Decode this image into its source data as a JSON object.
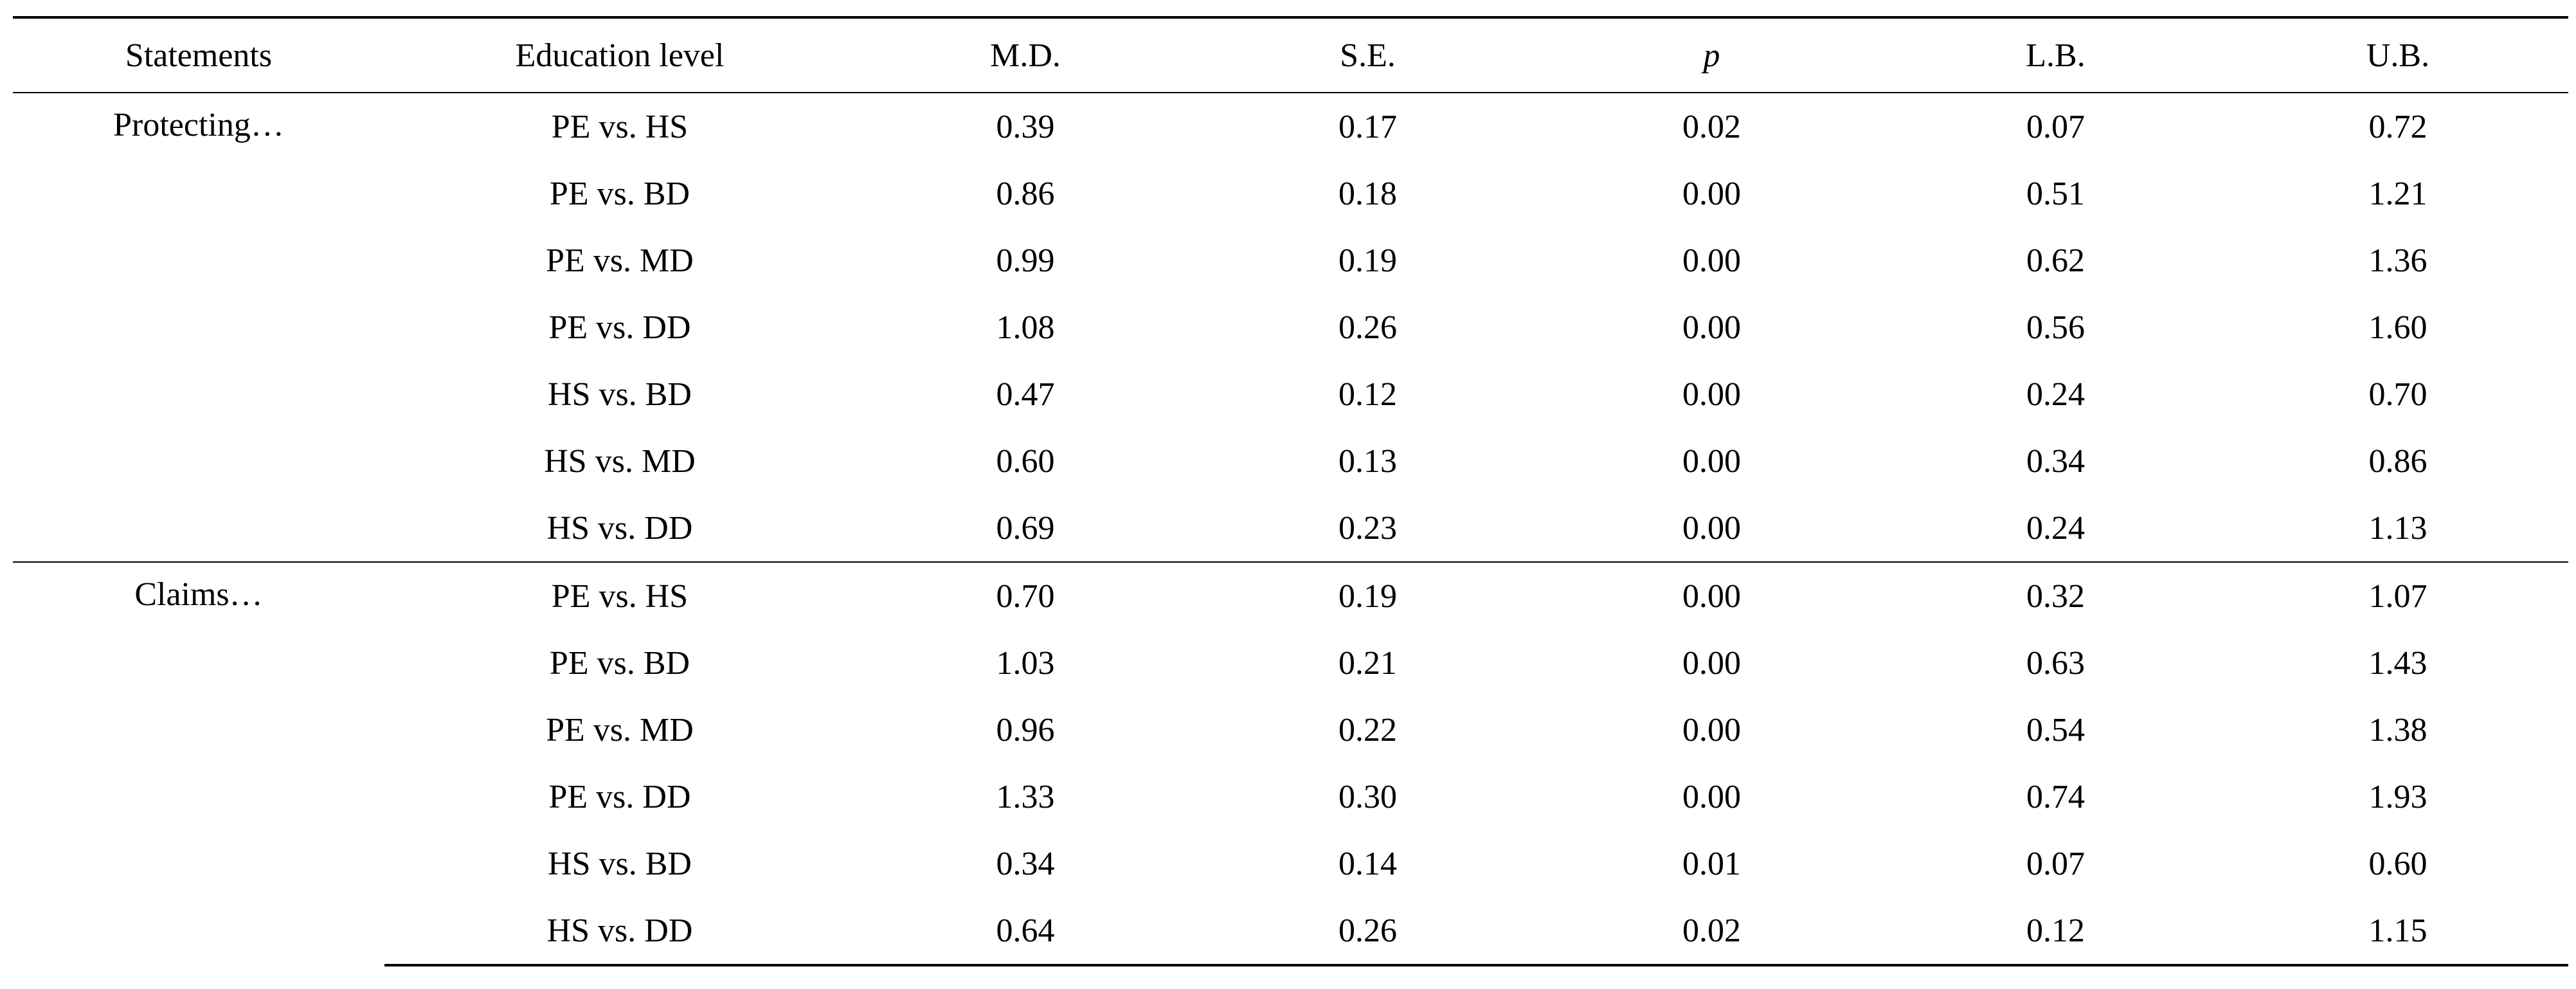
{
  "table": {
    "headers": {
      "statements": "Statements",
      "education_level": "Education level",
      "md": "M.D.",
      "se": "S.E.",
      "p": "p",
      "lb": "L.B.",
      "ub": "U.B."
    },
    "groups": [
      {
        "statement": "Protecting…",
        "rows": [
          {
            "education_level": "PE vs. HS",
            "md": "0.39",
            "se": "0.17",
            "p": "0.02",
            "lb": "0.07",
            "ub": "0.72"
          },
          {
            "education_level": "PE vs. BD",
            "md": "0.86",
            "se": "0.18",
            "p": "0.00",
            "lb": "0.51",
            "ub": "1.21"
          },
          {
            "education_level": "PE vs. MD",
            "md": "0.99",
            "se": "0.19",
            "p": "0.00",
            "lb": "0.62",
            "ub": "1.36"
          },
          {
            "education_level": "PE vs. DD",
            "md": "1.08",
            "se": "0.26",
            "p": "0.00",
            "lb": "0.56",
            "ub": "1.60"
          },
          {
            "education_level": "HS vs. BD",
            "md": "0.47",
            "se": "0.12",
            "p": "0.00",
            "lb": "0.24",
            "ub": "0.70"
          },
          {
            "education_level": "HS vs. MD",
            "md": "0.60",
            "se": "0.13",
            "p": "0.00",
            "lb": "0.34",
            "ub": "0.86"
          },
          {
            "education_level": "HS vs. DD",
            "md": "0.69",
            "se": "0.23",
            "p": "0.00",
            "lb": "0.24",
            "ub": "1.13"
          }
        ]
      },
      {
        "statement": "Claims…",
        "rows": [
          {
            "education_level": "PE vs. HS",
            "md": "0.70",
            "se": "0.19",
            "p": "0.00",
            "lb": "0.32",
            "ub": "1.07"
          },
          {
            "education_level": "PE vs. BD",
            "md": "1.03",
            "se": "0.21",
            "p": "0.00",
            "lb": "0.63",
            "ub": "1.43"
          },
          {
            "education_level": "PE vs. MD",
            "md": "0.96",
            "se": "0.22",
            "p": "0.00",
            "lb": "0.54",
            "ub": "1.38"
          },
          {
            "education_level": "PE vs. DD",
            "md": "1.33",
            "se": "0.30",
            "p": "0.00",
            "lb": "0.74",
            "ub": "1.93"
          },
          {
            "education_level": "HS vs. BD",
            "md": "0.34",
            "se": "0.14",
            "p": "0.01",
            "lb": "0.07",
            "ub": "0.60"
          },
          {
            "education_level": "HS vs. DD",
            "md": "0.64",
            "se": "0.26",
            "p": "0.02",
            "lb": "0.12",
            "ub": "1.15"
          }
        ]
      }
    ]
  }
}
